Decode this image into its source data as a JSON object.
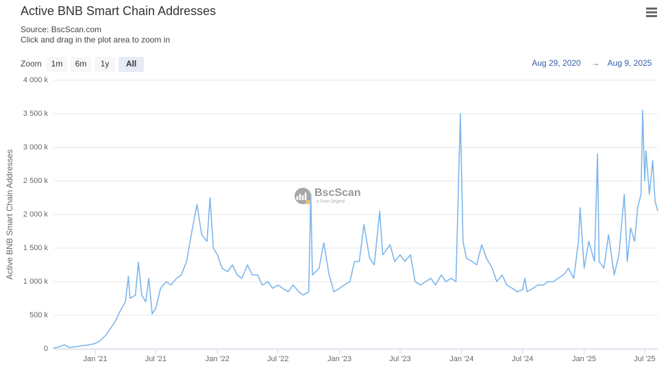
{
  "chart_data": {
    "type": "line",
    "title": "Active BNB Smart Chain Addresses",
    "source": "Source: BscScan.com",
    "subtitle": "Click and drag in the plot area to zoom in",
    "zoom_label": "Zoom",
    "zoom_buttons": [
      "1m",
      "6m",
      "1y",
      "All"
    ],
    "selected_zoom": 3,
    "range_from": "Aug 29, 2020",
    "range_arrow": "→",
    "range_to": "Aug 9, 2025",
    "watermark": "BscScan",
    "watermark_sub": "a Scan Original",
    "y_label": "Active BNB Smart Chain Addresses",
    "ylim": [
      0,
      4000000
    ],
    "yticks": [
      {
        "value": 0,
        "label": "0"
      },
      {
        "value": 500000,
        "label": "500 k"
      },
      {
        "value": 1000000,
        "label": "1 000 k"
      },
      {
        "value": 1500000,
        "label": "1 500 k"
      },
      {
        "value": 2000000,
        "label": "2 000 k"
      },
      {
        "value": 2500000,
        "label": "2 500 k"
      },
      {
        "value": 3000000,
        "label": "3 000 k"
      },
      {
        "value": 3500000,
        "label": "3 500 k"
      },
      {
        "value": 4000000,
        "label": "4 000 k"
      }
    ],
    "xlim": [
      "2020-08-29",
      "2025-08-09"
    ],
    "xticks": [
      {
        "value": "2021-01-01",
        "label": "Jan '21"
      },
      {
        "value": "2021-07-01",
        "label": "Jul '21"
      },
      {
        "value": "2022-01-01",
        "label": "Jan '22"
      },
      {
        "value": "2022-07-01",
        "label": "Jul '22"
      },
      {
        "value": "2023-01-01",
        "label": "Jan '23"
      },
      {
        "value": "2023-07-01",
        "label": "Jul '23"
      },
      {
        "value": "2024-01-01",
        "label": "Jan '24"
      },
      {
        "value": "2024-07-01",
        "label": "Jul '24"
      },
      {
        "value": "2025-01-01",
        "label": "Jan '25"
      },
      {
        "value": "2025-07-01",
        "label": "Jul '25"
      }
    ],
    "grid": true,
    "series": [
      {
        "name": "Active BNB Smart Chain Addresses",
        "color": "#7cb5ec",
        "x": [
          "2020-08-29",
          "2020-09-15",
          "2020-10-01",
          "2020-10-15",
          "2020-11-01",
          "2020-11-15",
          "2020-12-01",
          "2020-12-15",
          "2021-01-01",
          "2021-01-15",
          "2021-02-01",
          "2021-02-15",
          "2021-03-01",
          "2021-03-15",
          "2021-04-01",
          "2021-04-10",
          "2021-04-15",
          "2021-05-01",
          "2021-05-10",
          "2021-05-20",
          "2021-06-01",
          "2021-06-10",
          "2021-06-20",
          "2021-07-01",
          "2021-07-15",
          "2021-08-01",
          "2021-08-15",
          "2021-09-01",
          "2021-09-15",
          "2021-10-01",
          "2021-10-15",
          "2021-11-01",
          "2021-11-15",
          "2021-12-01",
          "2021-12-10",
          "2021-12-20",
          "2022-01-01",
          "2022-01-15",
          "2022-02-01",
          "2022-02-15",
          "2022-03-01",
          "2022-03-15",
          "2022-04-01",
          "2022-04-15",
          "2022-05-01",
          "2022-05-15",
          "2022-06-01",
          "2022-06-15",
          "2022-07-01",
          "2022-07-15",
          "2022-08-01",
          "2022-08-15",
          "2022-09-01",
          "2022-09-15",
          "2022-10-01",
          "2022-10-07",
          "2022-10-12",
          "2022-11-01",
          "2022-11-15",
          "2022-12-01",
          "2022-12-15",
          "2023-01-01",
          "2023-01-15",
          "2023-02-01",
          "2023-02-15",
          "2023-03-01",
          "2023-03-15",
          "2023-04-01",
          "2023-04-15",
          "2023-05-01",
          "2023-05-10",
          "2023-06-01",
          "2023-06-15",
          "2023-07-01",
          "2023-07-15",
          "2023-08-01",
          "2023-08-15",
          "2023-09-01",
          "2023-09-15",
          "2023-10-01",
          "2023-10-15",
          "2023-11-01",
          "2023-11-15",
          "2023-12-01",
          "2023-12-15",
          "2023-12-28",
          "2024-01-05",
          "2024-01-15",
          "2024-02-01",
          "2024-02-15",
          "2024-03-01",
          "2024-03-15",
          "2024-04-01",
          "2024-04-15",
          "2024-05-01",
          "2024-05-15",
          "2024-06-01",
          "2024-06-15",
          "2024-07-01",
          "2024-07-08",
          "2024-07-15",
          "2024-08-01",
          "2024-08-15",
          "2024-09-01",
          "2024-09-15",
          "2024-10-01",
          "2024-10-15",
          "2024-11-01",
          "2024-11-15",
          "2024-12-01",
          "2024-12-15",
          "2024-12-20",
          "2025-01-01",
          "2025-01-15",
          "2025-02-01",
          "2025-02-10",
          "2025-02-15",
          "2025-03-01",
          "2025-03-15",
          "2025-04-01",
          "2025-04-15",
          "2025-05-01",
          "2025-05-10",
          "2025-05-20",
          "2025-06-01",
          "2025-06-10",
          "2025-06-20",
          "2025-06-25",
          "2025-07-01",
          "2025-07-05",
          "2025-07-15",
          "2025-07-25",
          "2025-08-01",
          "2025-08-09"
        ],
        "values": [
          10000,
          30000,
          60000,
          20000,
          30000,
          40000,
          50000,
          60000,
          80000,
          120000,
          200000,
          300000,
          400000,
          550000,
          700000,
          1080000,
          750000,
          800000,
          1290000,
          800000,
          700000,
          1050000,
          520000,
          600000,
          900000,
          1000000,
          950000,
          1050000,
          1100000,
          1300000,
          1700000,
          2150000,
          1700000,
          1600000,
          2250000,
          1500000,
          1400000,
          1200000,
          1150000,
          1250000,
          1100000,
          1050000,
          1250000,
          1100000,
          1100000,
          950000,
          1000000,
          900000,
          950000,
          900000,
          850000,
          950000,
          850000,
          800000,
          850000,
          2300000,
          1100000,
          1200000,
          1580000,
          1100000,
          850000,
          900000,
          950000,
          1000000,
          1300000,
          1300000,
          1850000,
          1350000,
          1250000,
          2050000,
          1400000,
          1550000,
          1300000,
          1400000,
          1300000,
          1400000,
          1000000,
          950000,
          1000000,
          1050000,
          950000,
          1100000,
          1000000,
          1050000,
          1000000,
          3500000,
          1600000,
          1350000,
          1300000,
          1250000,
          1550000,
          1350000,
          1200000,
          1000000,
          1100000,
          950000,
          900000,
          850000,
          880000,
          1050000,
          850000,
          900000,
          950000,
          950000,
          1000000,
          1000000,
          1050000,
          1100000,
          1200000,
          1050000,
          1600000,
          2100000,
          1200000,
          1600000,
          1300000,
          2900000,
          1300000,
          1200000,
          1700000,
          1100000,
          1400000,
          2300000,
          1300000,
          1800000,
          1600000,
          2100000,
          2300000,
          3550000,
          2500000,
          2950000,
          2300000,
          2800000,
          2200000,
          2050000
        ]
      }
    ]
  }
}
